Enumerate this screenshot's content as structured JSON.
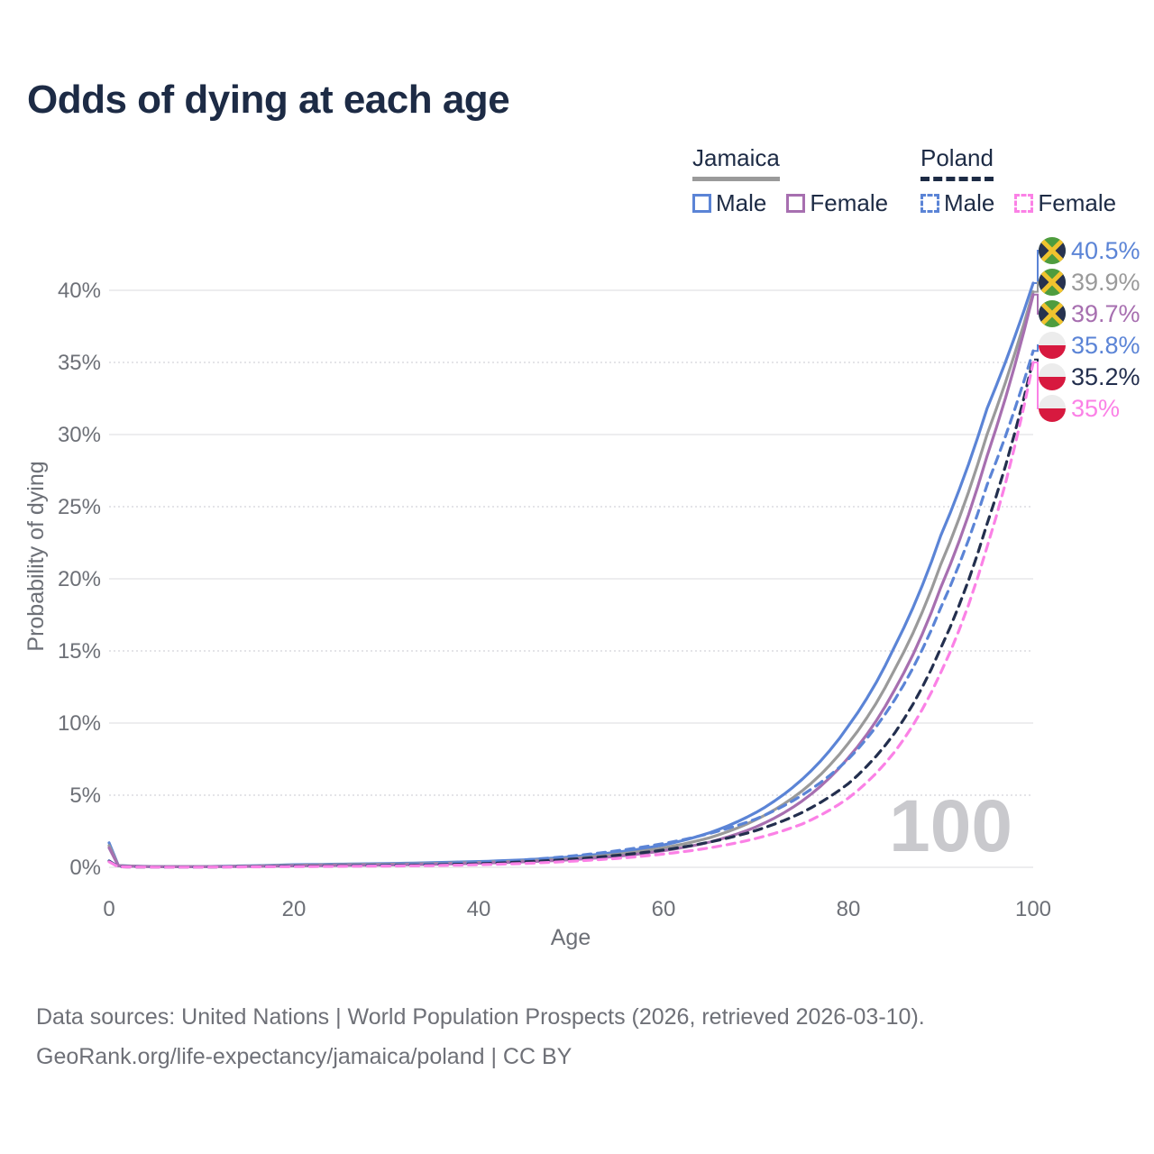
{
  "title": "Odds of dying at each age",
  "legend": {
    "groups": [
      {
        "name": "Jamaica",
        "style": "solid",
        "underline_color": "#9a9a9a",
        "items": [
          {
            "label": "Male",
            "color": "#5b84d6",
            "dash": false
          },
          {
            "label": "Female",
            "color": "#a76fb0",
            "dash": false
          }
        ]
      },
      {
        "name": "Poland",
        "style": "dashed",
        "underline_color": "#1d2b45",
        "items": [
          {
            "label": "Male",
            "color": "#5b84d6",
            "dash": true
          },
          {
            "label": "Female",
            "color": "#fb81e6",
            "dash": true
          }
        ]
      }
    ]
  },
  "chart_data": {
    "type": "line",
    "title": "Odds of dying at each age",
    "xlabel": "Age",
    "ylabel": "Probability of dying",
    "xlim": [
      0,
      100
    ],
    "ylim": [
      0,
      43.5
    ],
    "x_ticks": [
      0,
      20,
      40,
      60,
      80,
      100
    ],
    "y_ticks": [
      0,
      5,
      10,
      15,
      20,
      25,
      30,
      35,
      40
    ],
    "y_tick_suffix": "%",
    "grid": "horizontal, solid at 10% steps, dotted at 5% steps",
    "legend_position": "top-right",
    "watermark": "100",
    "ages": [
      0,
      1,
      5,
      10,
      15,
      20,
      25,
      30,
      35,
      40,
      45,
      50,
      55,
      60,
      65,
      70,
      75,
      80,
      85,
      90,
      95,
      100
    ],
    "series": [
      {
        "name": "Jamaica Male",
        "country": "Jamaica",
        "sex": "male",
        "color": "#5b84d6",
        "dashed": false,
        "values": [
          1.7,
          0.12,
          0.05,
          0.05,
          0.1,
          0.18,
          0.22,
          0.26,
          0.32,
          0.4,
          0.52,
          0.72,
          1.05,
          1.55,
          2.4,
          3.8,
          6.1,
          9.8,
          15.3,
          23.0,
          31.8,
          40.5
        ],
        "end_label": "40.5%",
        "label_color": "#5b84d6",
        "flag": "jamaica"
      },
      {
        "name": "Jamaica",
        "country": "Jamaica",
        "sex": "both",
        "color": "#9a9a9a",
        "dashed": false,
        "values": [
          1.5,
          0.11,
          0.04,
          0.04,
          0.08,
          0.14,
          0.18,
          0.21,
          0.26,
          0.34,
          0.45,
          0.62,
          0.9,
          1.35,
          2.05,
          3.3,
          5.3,
          8.6,
          13.7,
          21.0,
          30.0,
          39.9
        ],
        "end_label": "39.9%",
        "label_color": "#9a9a9a",
        "flag": "jamaica"
      },
      {
        "name": "Jamaica Female",
        "country": "Jamaica",
        "sex": "female",
        "color": "#a76fb0",
        "dashed": false,
        "values": [
          1.35,
          0.1,
          0.04,
          0.04,
          0.06,
          0.1,
          0.13,
          0.16,
          0.21,
          0.28,
          0.38,
          0.53,
          0.76,
          1.15,
          1.75,
          2.8,
          4.6,
          7.6,
          12.3,
          19.4,
          28.5,
          39.7
        ],
        "end_label": "39.7%",
        "label_color": "#a76fb0",
        "flag": "jamaica"
      },
      {
        "name": "Poland Male",
        "country": "Poland",
        "sex": "male",
        "color": "#5b84d6",
        "dashed": true,
        "values": [
          0.45,
          0.04,
          0.02,
          0.02,
          0.05,
          0.1,
          0.12,
          0.16,
          0.23,
          0.34,
          0.52,
          0.78,
          1.15,
          1.65,
          2.35,
          3.35,
          5.0,
          7.5,
          11.6,
          18.0,
          26.5,
          35.8
        ],
        "end_label": "35.8%",
        "label_color": "#5b84d6",
        "flag": "poland"
      },
      {
        "name": "Poland",
        "country": "Poland",
        "sex": "both",
        "color": "#232f4e",
        "dashed": true,
        "values": [
          0.42,
          0.035,
          0.02,
          0.02,
          0.04,
          0.08,
          0.1,
          0.12,
          0.17,
          0.25,
          0.38,
          0.56,
          0.83,
          1.2,
          1.75,
          2.55,
          3.8,
          5.8,
          9.3,
          15.2,
          23.8,
          35.2
        ],
        "end_label": "35.2%",
        "label_color": "#232f4e",
        "flag": "poland"
      },
      {
        "name": "Poland Female",
        "country": "Poland",
        "sex": "female",
        "color": "#fb81e6",
        "dashed": true,
        "values": [
          0.38,
          0.03,
          0.015,
          0.015,
          0.03,
          0.05,
          0.07,
          0.09,
          0.12,
          0.18,
          0.27,
          0.42,
          0.62,
          0.92,
          1.35,
          2.0,
          3.0,
          4.8,
          8.0,
          13.5,
          22.2,
          35.0
        ],
        "end_label": "35%",
        "label_color": "#fb81e6",
        "flag": "poland"
      }
    ]
  },
  "footer": {
    "line1": "Data sources: United Nations | World Population Prospects (2026, retrieved 2026-03-10).",
    "line2": "GeoRank.org/life-expectancy/jamaica/poland | CC BY"
  }
}
